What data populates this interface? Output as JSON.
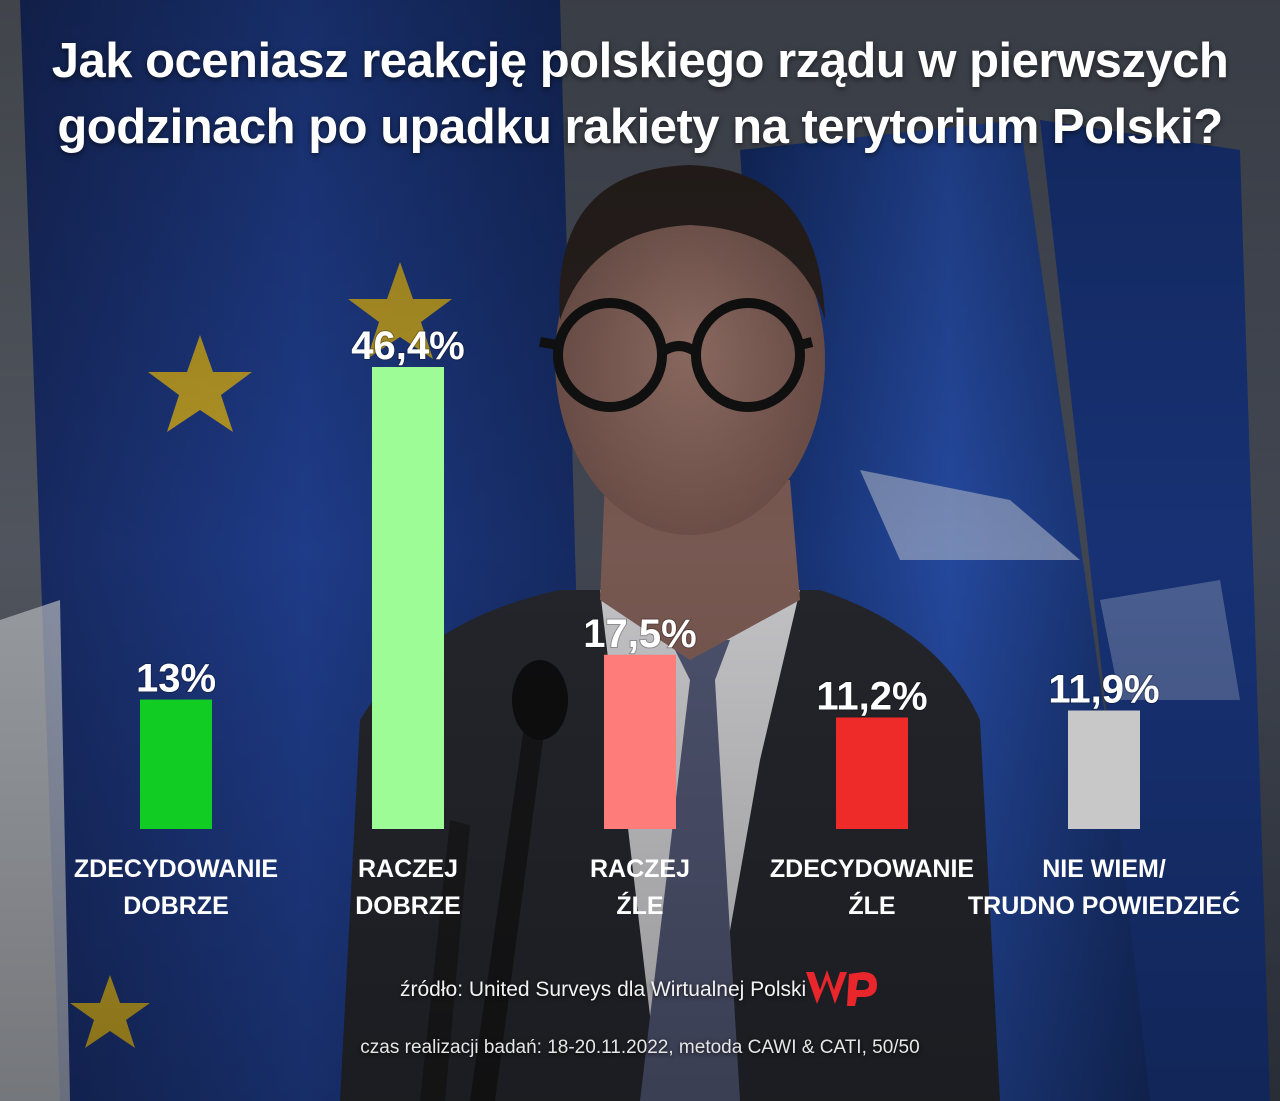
{
  "title": {
    "line1": "Jak oceniasz reakcję polskiego rządu w pierwszych",
    "line2": "godzinach po upadku rakiety na terytorium Polski?"
  },
  "chart_data": {
    "type": "bar",
    "title": "Jak oceniasz reakcję polskiego rządu w pierwszych godzinach po upadku rakiety na terytorium Polski?",
    "categories": [
      [
        "ZDECYDOWANIE",
        "DOBRZE"
      ],
      [
        "RACZEJ",
        "DOBRZE"
      ],
      [
        "RACZEJ",
        "ŹLE"
      ],
      [
        "ZDECYDOWANIE",
        "ŹLE"
      ],
      [
        "NIE WIEM/",
        "TRUDNO POWIEDZIEĆ"
      ]
    ],
    "values": [
      13,
      46.4,
      17.5,
      11.2,
      11.9
    ],
    "value_labels": [
      "13%",
      "46,4%",
      "17,5%",
      "11,2%",
      "11,9%"
    ],
    "colors": [
      "#11cc22",
      "#9dfc96",
      "#fe7d7a",
      "#ee2b29",
      "#c8c8c8"
    ],
    "ylim": [
      0,
      46.4
    ],
    "grid": false,
    "legend": "none"
  },
  "source": {
    "text": "źródło: United Surveys dla Wirtualnej Polski",
    "logo": "wp-logo"
  },
  "meta": {
    "text": "czas realizacji badań: 18-20.11.2022, metoda CAWI & CATI, 50/50"
  },
  "colors": {
    "logo_red": "#e8262b",
    "flag_blue": "#1f3d8f",
    "star_yellow": "#f0c21b"
  }
}
